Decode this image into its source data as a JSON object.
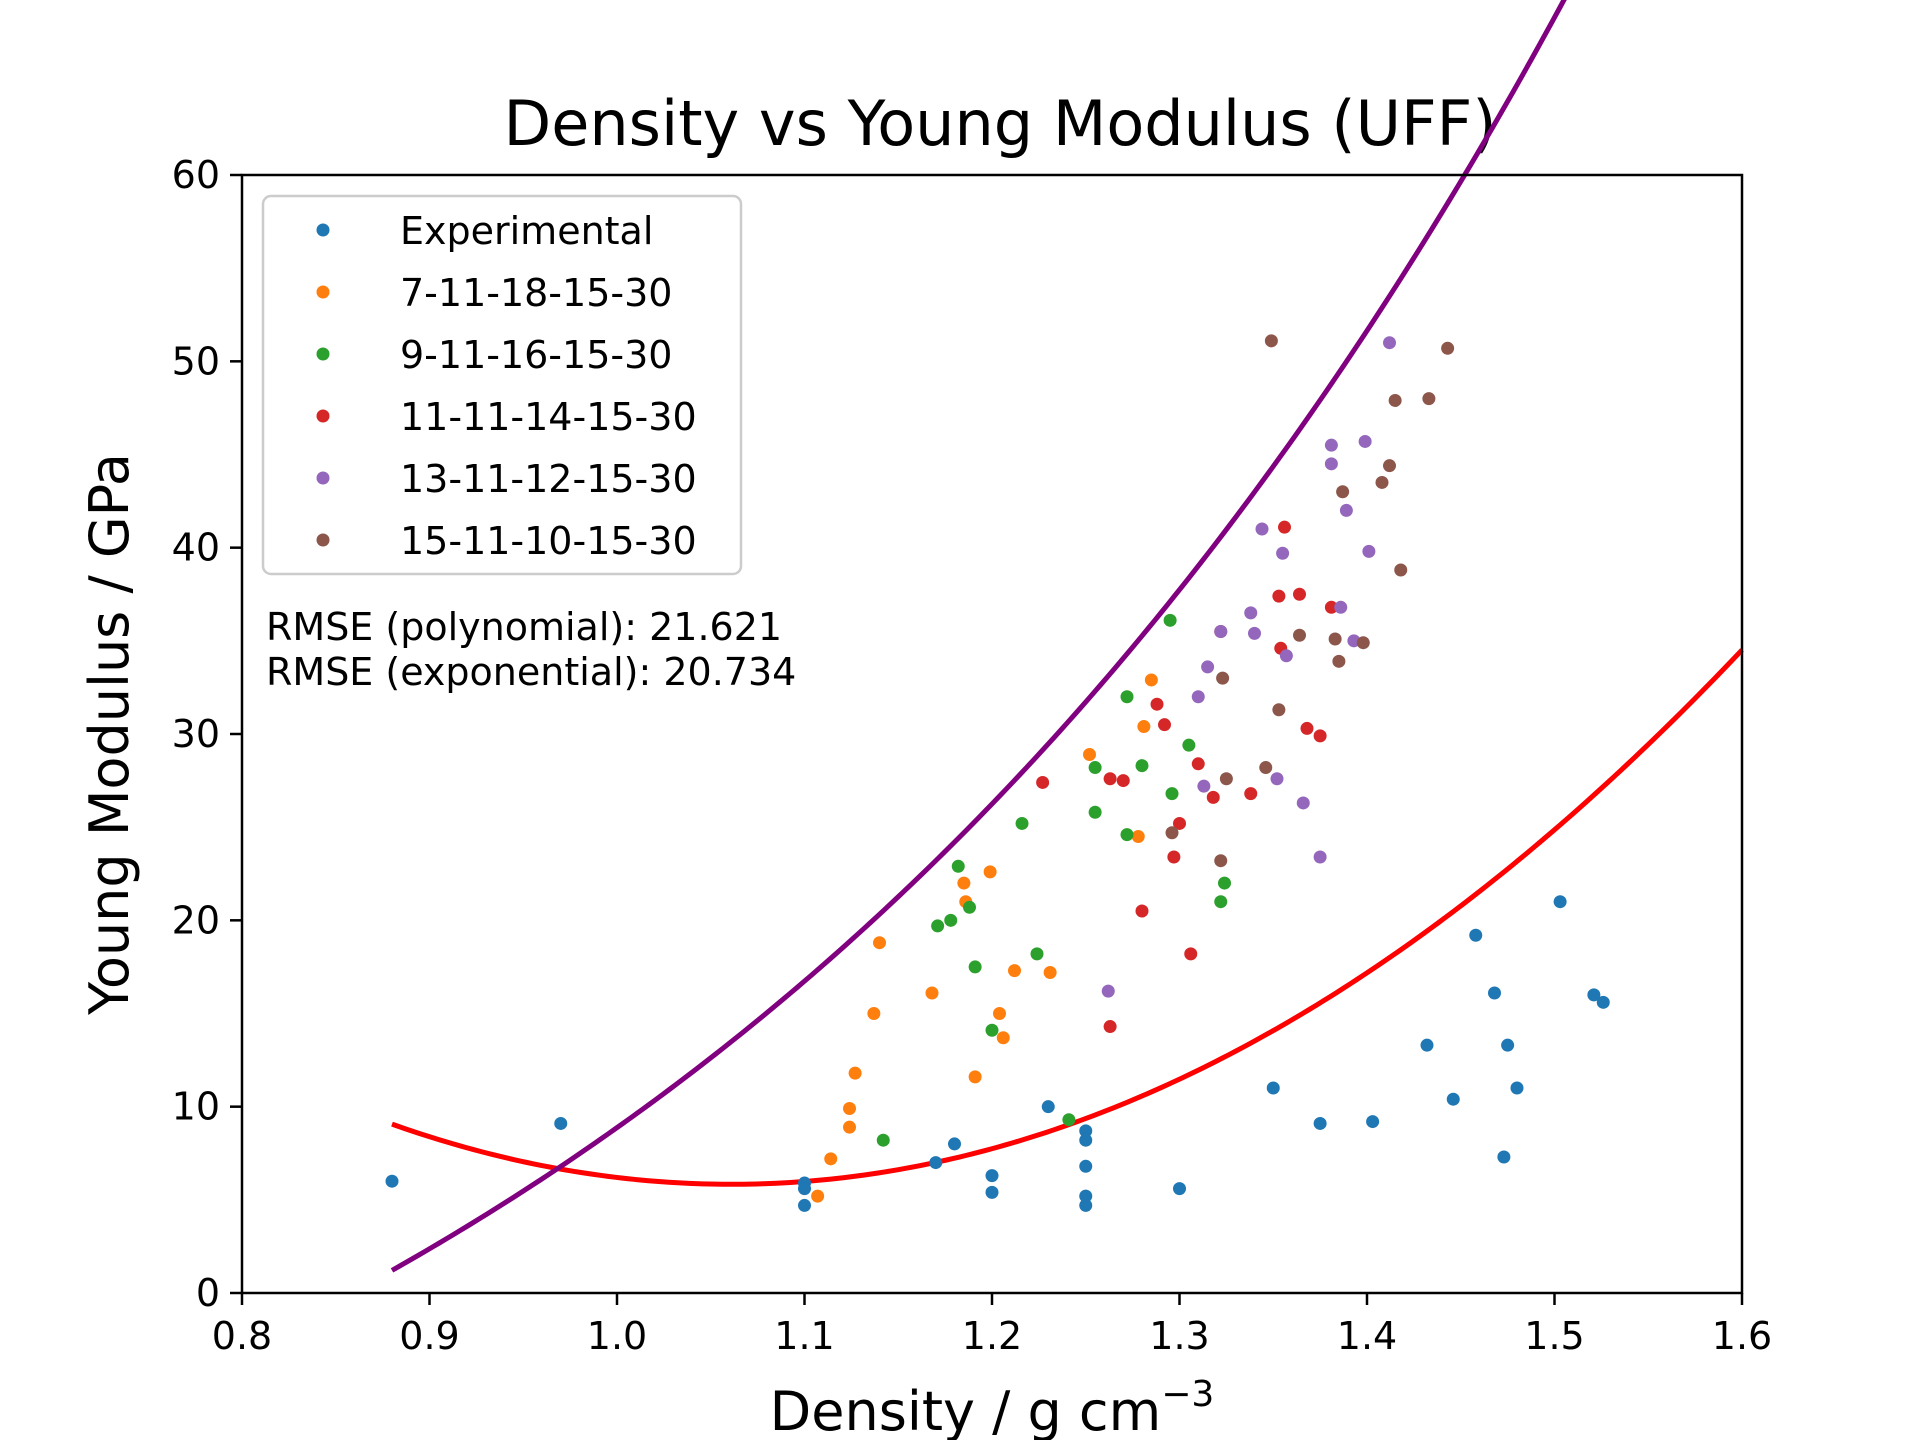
{
  "chart_data": {
    "type": "scatter",
    "title": "Density vs Young Modulus (UFF)",
    "xlabel_main": "Density / g cm",
    "xlabel_sup": "−3",
    "ylabel": "Young Modulus / GPa",
    "xlim": [
      0.8,
      1.6
    ],
    "ylim": [
      0,
      60
    ],
    "xticks": [
      0.8,
      0.9,
      1.0,
      1.1,
      1.2,
      1.3,
      1.4,
      1.5,
      1.6
    ],
    "yticks": [
      0,
      10,
      20,
      30,
      40,
      50,
      60
    ],
    "grid": false,
    "legend_position": "upper-left",
    "annotations": {
      "rmse_polynomial": "RMSE (polynomial): 21.621",
      "rmse_exponential": "RMSE (exponential): 20.734"
    },
    "series": [
      {
        "name": "Experimental",
        "color": "#1f77b4",
        "points": [
          [
            0.88,
            6.0
          ],
          [
            0.97,
            9.1
          ],
          [
            1.1,
            5.9
          ],
          [
            1.1,
            4.7
          ],
          [
            1.1,
            5.6
          ],
          [
            1.17,
            7.0
          ],
          [
            1.18,
            8.0
          ],
          [
            1.2,
            6.3
          ],
          [
            1.2,
            5.4
          ],
          [
            1.23,
            10.0
          ],
          [
            1.25,
            8.7
          ],
          [
            1.25,
            8.2
          ],
          [
            1.25,
            6.8
          ],
          [
            1.25,
            5.2
          ],
          [
            1.25,
            4.7
          ],
          [
            1.3,
            5.6
          ],
          [
            1.35,
            11.0
          ],
          [
            1.375,
            9.1
          ],
          [
            1.403,
            9.2
          ],
          [
            1.432,
            13.3
          ],
          [
            1.446,
            10.4
          ],
          [
            1.458,
            19.2
          ],
          [
            1.468,
            16.1
          ],
          [
            1.473,
            7.3
          ],
          [
            1.475,
            13.3
          ],
          [
            1.48,
            11.0
          ],
          [
            1.503,
            21.0
          ],
          [
            1.521,
            16.0
          ],
          [
            1.526,
            15.6
          ]
        ]
      },
      {
        "name": "7-11-18-15-30",
        "color": "#ff7f0e",
        "points": [
          [
            1.107,
            5.2
          ],
          [
            1.114,
            7.2
          ],
          [
            1.124,
            9.9
          ],
          [
            1.124,
            8.9
          ],
          [
            1.127,
            11.8
          ],
          [
            1.137,
            15.0
          ],
          [
            1.14,
            18.8
          ],
          [
            1.168,
            16.1
          ],
          [
            1.185,
            22.0
          ],
          [
            1.186,
            21.0
          ],
          [
            1.191,
            11.6
          ],
          [
            1.199,
            22.6
          ],
          [
            1.204,
            15.0
          ],
          [
            1.206,
            13.7
          ],
          [
            1.212,
            17.3
          ],
          [
            1.231,
            17.2
          ],
          [
            1.252,
            28.9
          ],
          [
            1.278,
            24.5
          ],
          [
            1.281,
            30.4
          ],
          [
            1.285,
            32.9
          ]
        ]
      },
      {
        "name": "9-11-16-15-30",
        "color": "#2ca02c",
        "points": [
          [
            1.142,
            8.2
          ],
          [
            1.171,
            19.7
          ],
          [
            1.178,
            20.0
          ],
          [
            1.182,
            22.9
          ],
          [
            1.188,
            20.7
          ],
          [
            1.191,
            17.5
          ],
          [
            1.2,
            14.1
          ],
          [
            1.216,
            25.2
          ],
          [
            1.224,
            18.2
          ],
          [
            1.241,
            9.3
          ],
          [
            1.255,
            28.2
          ],
          [
            1.255,
            25.8
          ],
          [
            1.272,
            32.0
          ],
          [
            1.272,
            24.6
          ],
          [
            1.28,
            28.3
          ],
          [
            1.295,
            36.1
          ],
          [
            1.296,
            26.8
          ],
          [
            1.305,
            29.4
          ],
          [
            1.322,
            21.0
          ],
          [
            1.324,
            22.0
          ]
        ]
      },
      {
        "name": "11-11-14-15-30",
        "color": "#d62728",
        "points": [
          [
            1.227,
            27.4
          ],
          [
            1.263,
            14.3
          ],
          [
            1.263,
            27.6
          ],
          [
            1.27,
            27.5
          ],
          [
            1.28,
            20.5
          ],
          [
            1.288,
            31.6
          ],
          [
            1.292,
            30.5
          ],
          [
            1.297,
            23.4
          ],
          [
            1.3,
            25.2
          ],
          [
            1.306,
            18.2
          ],
          [
            1.31,
            28.4
          ],
          [
            1.318,
            26.6
          ],
          [
            1.322,
            35.5
          ],
          [
            1.338,
            26.8
          ],
          [
            1.353,
            37.4
          ],
          [
            1.354,
            34.6
          ],
          [
            1.356,
            41.1
          ],
          [
            1.364,
            37.5
          ],
          [
            1.368,
            30.3
          ],
          [
            1.375,
            29.9
          ],
          [
            1.381,
            36.8
          ]
        ]
      },
      {
        "name": "13-11-12-15-30",
        "color": "#9467bd",
        "points": [
          [
            1.262,
            16.2
          ],
          [
            1.31,
            32.0
          ],
          [
            1.313,
            27.2
          ],
          [
            1.315,
            33.6
          ],
          [
            1.322,
            35.5
          ],
          [
            1.338,
            36.5
          ],
          [
            1.34,
            35.4
          ],
          [
            1.344,
            41.0
          ],
          [
            1.352,
            27.6
          ],
          [
            1.355,
            39.7
          ],
          [
            1.357,
            34.2
          ],
          [
            1.366,
            26.3
          ],
          [
            1.375,
            23.4
          ],
          [
            1.381,
            45.5
          ],
          [
            1.381,
            44.5
          ],
          [
            1.386,
            36.8
          ],
          [
            1.389,
            42.0
          ],
          [
            1.393,
            35.0
          ],
          [
            1.399,
            45.7
          ],
          [
            1.401,
            39.8
          ],
          [
            1.412,
            51.0
          ]
        ]
      },
      {
        "name": "15-11-10-15-30",
        "color": "#8c564b",
        "points": [
          [
            1.296,
            24.7
          ],
          [
            1.322,
            23.2
          ],
          [
            1.323,
            33.0
          ],
          [
            1.325,
            27.6
          ],
          [
            1.346,
            28.2
          ],
          [
            1.349,
            51.1
          ],
          [
            1.353,
            31.3
          ],
          [
            1.364,
            35.3
          ],
          [
            1.383,
            35.1
          ],
          [
            1.385,
            33.9
          ],
          [
            1.387,
            43.0
          ],
          [
            1.398,
            34.9
          ],
          [
            1.408,
            43.5
          ],
          [
            1.412,
            44.4
          ],
          [
            1.415,
            47.9
          ],
          [
            1.418,
            38.8
          ],
          [
            1.433,
            48.0
          ],
          [
            1.443,
            50.7
          ]
        ]
      }
    ],
    "fits": [
      {
        "name": "polynomial",
        "color": "#ff0000",
        "form": "quadratic",
        "coefficients": [
          116.87,
          -209.33,
          98.66
        ],
        "x_range": [
          0.88,
          1.6
        ]
      },
      {
        "name": "exponential",
        "color": "#800080",
        "form": "a*exp(b*x)+c",
        "coefficients": [
          5.62,
          1.9,
          -28.7
        ],
        "x_range": [
          0.88,
          1.6
        ]
      }
    ]
  }
}
